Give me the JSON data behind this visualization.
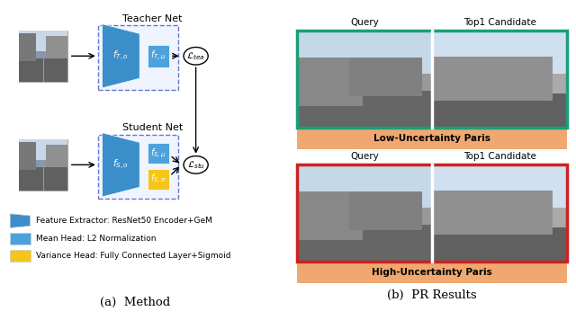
{
  "fig_width": 6.4,
  "fig_height": 3.56,
  "background_color": "#ffffff",
  "title_a": "(a)  Method",
  "title_b": "(b)  PR Results",
  "teacher_net_label": "Teacher Net",
  "student_net_label": "Student Net",
  "legend_items": [
    {
      "label": "Feature Extractor: ResNet50 Encoder+GeM",
      "color": "#3A8FCB",
      "shape": "trapezoid"
    },
    {
      "label": "Mean Head: L2 Normalization",
      "color": "#4CA3DC",
      "shape": "square"
    },
    {
      "label": "Variance Head: Fully Connected Layer+Sigmoid",
      "color": "#F5C518",
      "shape": "square"
    }
  ],
  "top_panel_label": "Low-Uncertainty Paris",
  "bottom_panel_label": "High-Uncertainty Paris",
  "query_label": "Query",
  "top1_label": "Top1 Candidate",
  "top_border_color": "#1B9E7A",
  "bottom_border_color": "#CC2222",
  "panel_bg_color": "#F0A870",
  "blue_trap": "#3A8FCB",
  "blue_rect": "#4CA3DC",
  "yellow": "#F5C518",
  "dashed_box_color": "#7777BB"
}
